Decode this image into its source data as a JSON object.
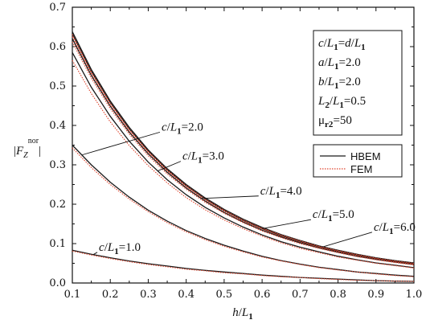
{
  "chart_data": {
    "type": "line",
    "xlabel": "h/L1",
    "ylabel": "|Fz^nor|",
    "xlim": [
      0.1,
      1.0
    ],
    "ylim": [
      0.0,
      0.7
    ],
    "xticks": [
      "0.1",
      "0.2",
      "0.3",
      "0.4",
      "0.5",
      "0.6",
      "0.7",
      "0.8",
      "0.9",
      "1.0"
    ],
    "yticks": [
      "0.0",
      "0.1",
      "0.2",
      "0.3",
      "0.4",
      "0.5",
      "0.6",
      "0.7"
    ],
    "x": [
      0.1,
      0.15,
      0.2,
      0.25,
      0.3,
      0.35,
      0.4,
      0.45,
      0.5,
      0.55,
      0.6,
      0.65,
      0.7,
      0.75,
      0.8,
      0.85,
      0.9,
      0.95,
      1.0
    ],
    "methods": [
      {
        "name": "HBEM",
        "color": "#1a1a1a",
        "dash": "solid"
      },
      {
        "name": "FEM",
        "color": "#e0442c",
        "dash": "dotted"
      }
    ],
    "series": [
      {
        "label": "c/L1=1.0",
        "method": "HBEM",
        "values": [
          0.083,
          0.073,
          0.064,
          0.056,
          0.049,
          0.043,
          0.037,
          0.032,
          0.028,
          0.024,
          0.02,
          0.017,
          0.014,
          0.012,
          0.01,
          0.008,
          0.006,
          0.005,
          0.004
        ]
      },
      {
        "label": "c/L1=1.0",
        "method": "FEM",
        "values": [
          0.081,
          0.071,
          0.062,
          0.054,
          0.047,
          0.041,
          0.035,
          0.031,
          0.026,
          0.023,
          0.019,
          0.016,
          0.014,
          0.011,
          0.009,
          0.007,
          0.006,
          0.005,
          0.004
        ]
      },
      {
        "label": "c/L1=2.0",
        "method": "HBEM",
        "values": [
          0.35,
          0.3,
          0.256,
          0.218,
          0.185,
          0.157,
          0.133,
          0.113,
          0.096,
          0.081,
          0.068,
          0.057,
          0.048,
          0.04,
          0.034,
          0.028,
          0.024,
          0.02,
          0.017
        ]
      },
      {
        "label": "c/L1=2.0",
        "method": "FEM",
        "values": [
          0.343,
          0.293,
          0.25,
          0.213,
          0.181,
          0.153,
          0.13,
          0.11,
          0.093,
          0.079,
          0.066,
          0.056,
          0.047,
          0.039,
          0.033,
          0.028,
          0.023,
          0.019,
          0.016
        ]
      },
      {
        "label": "c/L1=3.0",
        "method": "HBEM",
        "values": [
          0.585,
          0.497,
          0.423,
          0.36,
          0.307,
          0.262,
          0.224,
          0.192,
          0.165,
          0.142,
          0.122,
          0.105,
          0.091,
          0.079,
          0.068,
          0.059,
          0.051,
          0.045,
          0.039
        ]
      },
      {
        "label": "c/L1=3.0",
        "method": "FEM",
        "values": [
          0.565,
          0.481,
          0.409,
          0.349,
          0.298,
          0.254,
          0.217,
          0.186,
          0.16,
          0.138,
          0.119,
          0.102,
          0.088,
          0.077,
          0.066,
          0.058,
          0.05,
          0.044,
          0.038
        ]
      },
      {
        "label": "c/L1=4.0",
        "method": "HBEM",
        "values": [
          0.62,
          0.527,
          0.449,
          0.383,
          0.328,
          0.281,
          0.241,
          0.208,
          0.179,
          0.155,
          0.134,
          0.117,
          0.102,
          0.089,
          0.078,
          0.068,
          0.06,
          0.053,
          0.047
        ]
      },
      {
        "label": "c/L1=4.0",
        "method": "FEM",
        "values": [
          0.612,
          0.52,
          0.443,
          0.378,
          0.323,
          0.277,
          0.238,
          0.205,
          0.177,
          0.153,
          0.132,
          0.115,
          0.1,
          0.088,
          0.077,
          0.067,
          0.059,
          0.052,
          0.046
        ]
      },
      {
        "label": "c/L1=5.0",
        "method": "HBEM",
        "values": [
          0.632,
          0.537,
          0.458,
          0.391,
          0.335,
          0.287,
          0.247,
          0.213,
          0.184,
          0.159,
          0.138,
          0.12,
          0.105,
          0.092,
          0.08,
          0.071,
          0.062,
          0.055,
          0.049
        ]
      },
      {
        "label": "c/L1=5.0",
        "method": "FEM",
        "values": [
          0.625,
          0.531,
          0.452,
          0.386,
          0.331,
          0.284,
          0.244,
          0.21,
          0.182,
          0.157,
          0.137,
          0.119,
          0.104,
          0.091,
          0.08,
          0.07,
          0.062,
          0.054,
          0.048
        ]
      },
      {
        "label": "c/L1=6.0",
        "method": "HBEM",
        "values": [
          0.638,
          0.542,
          0.462,
          0.395,
          0.338,
          0.29,
          0.25,
          0.216,
          0.187,
          0.162,
          0.141,
          0.123,
          0.108,
          0.094,
          0.083,
          0.073,
          0.064,
          0.057,
          0.051
        ]
      },
      {
        "label": "c/L1=6.0",
        "method": "FEM",
        "values": [
          0.631,
          0.536,
          0.457,
          0.39,
          0.334,
          0.287,
          0.247,
          0.213,
          0.185,
          0.16,
          0.139,
          0.122,
          0.107,
          0.093,
          0.082,
          0.072,
          0.063,
          0.056,
          0.05
        ]
      }
    ],
    "annotations": [
      {
        "text": "c/L1=1.0",
        "at": [
          0.17,
          0.082
        ]
      },
      {
        "text": "c/L1=2.0",
        "at": [
          0.335,
          0.387
        ]
      },
      {
        "text": "c/L1=3.0",
        "at": [
          0.39,
          0.313
        ]
      },
      {
        "text": "c/L1=4.0",
        "at": [
          0.595,
          0.225
        ]
      },
      {
        "text": "c/L1=5.0",
        "at": [
          0.733,
          0.165
        ]
      },
      {
        "text": "c/L1=6.0",
        "at": [
          0.894,
          0.133
        ]
      }
    ],
    "parameters": [
      "c/L1=d/L1",
      "a/L1=2.0",
      "b/L1=2.0",
      "L2/L1=0.5",
      "μr2=50"
    ],
    "legend_position": "right",
    "grid": false
  }
}
